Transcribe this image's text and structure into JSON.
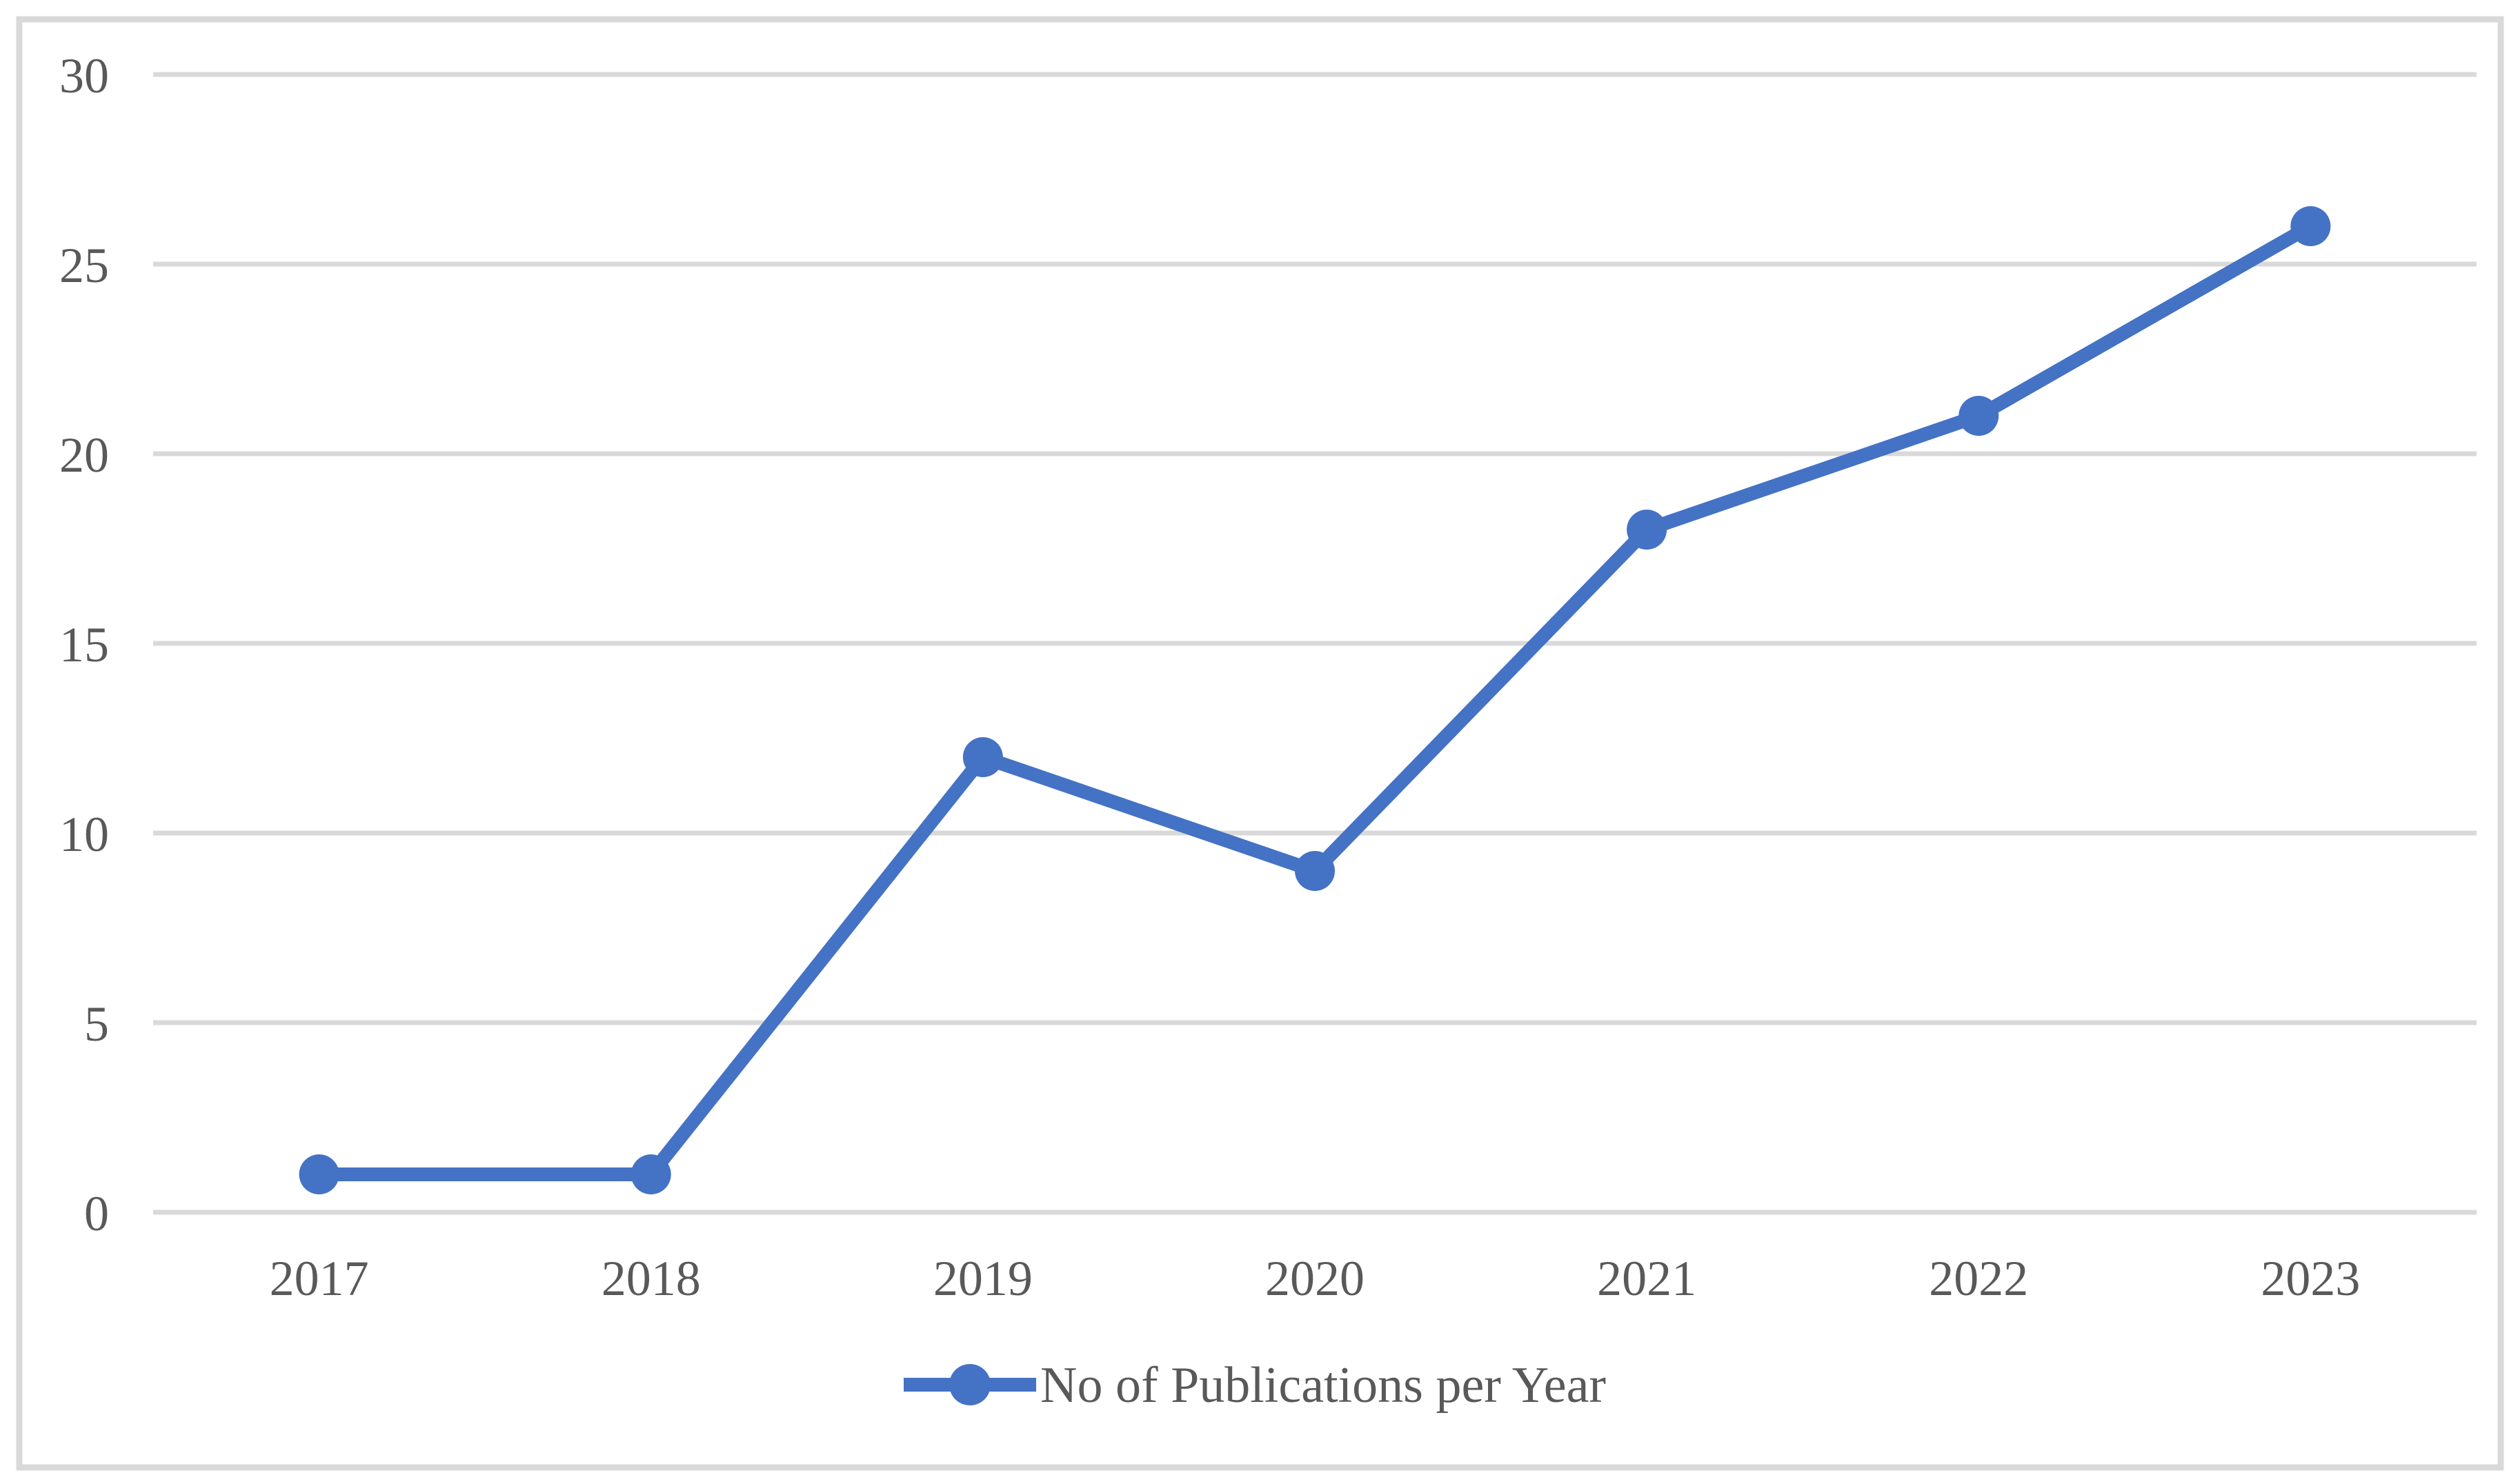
{
  "chart_data": {
    "type": "line",
    "title": "",
    "xlabel": "",
    "ylabel": "",
    "categories": [
      "2017",
      "2018",
      "2019",
      "2020",
      "2021",
      "2022",
      "2023"
    ],
    "series": [
      {
        "name": "No of Publications per Year",
        "values": [
          1,
          1,
          12,
          9,
          18,
          21,
          26
        ]
      }
    ],
    "ylim": [
      0,
      30
    ],
    "yticks": [
      0,
      5,
      10,
      15,
      20,
      25,
      30
    ],
    "grid": "horizontal-only",
    "marker": "circle",
    "legend_position": "bottom-center",
    "colors": {
      "series": "#4472C4",
      "gridline": "#D9D9D9",
      "outer_border": "#D9D9D9",
      "tick_label": "#595959",
      "background": "#FFFFFF"
    }
  },
  "legend": {
    "label": "No of Publications per Year"
  }
}
